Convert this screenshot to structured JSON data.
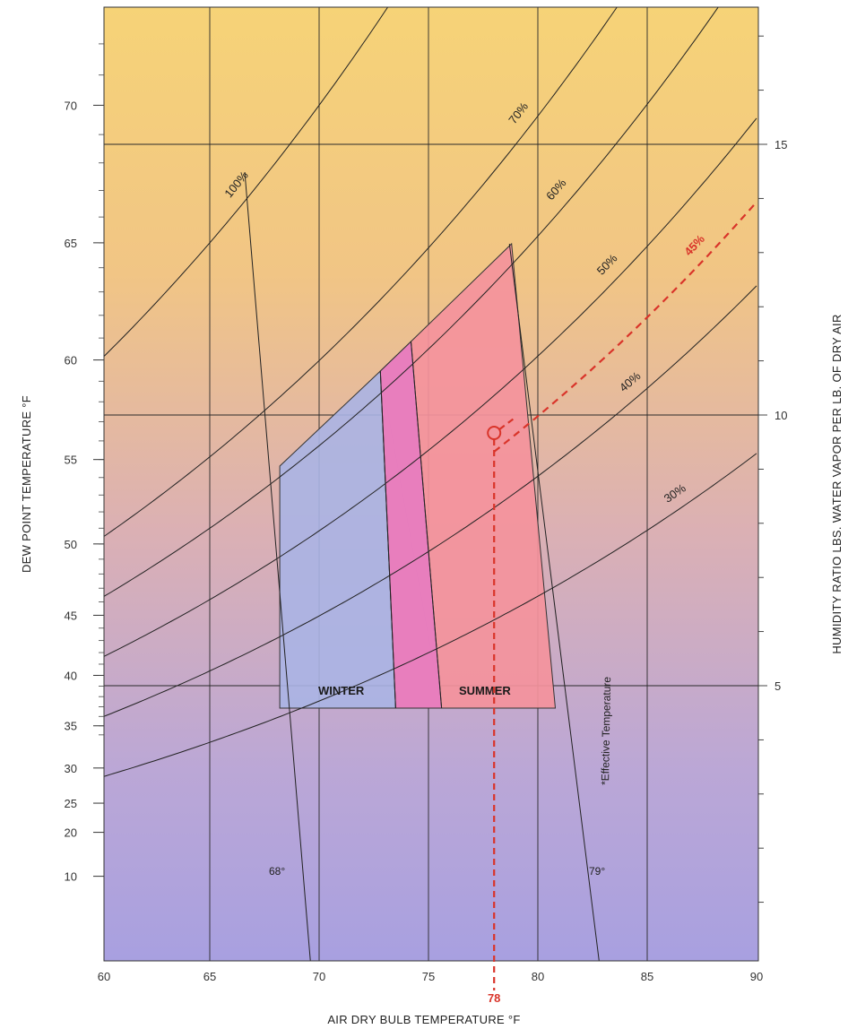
{
  "chart_data": {
    "type": "psychrometric-comfort-chart",
    "xlabel": "AIR DRY BULB TEMPERATURE °F",
    "ylabel_left": "DEW POINT TEMPERATURE °F",
    "ylabel_right": "HUMIDITY RATIO LBS. WATER VAPOR PER LB. OF DRY AIR",
    "xlim": [
      60,
      90
    ],
    "x_ticks": [
      60,
      65,
      70,
      75,
      80,
      85,
      90
    ],
    "dew_point_ticks": [
      10,
      20,
      25,
      30,
      35,
      40,
      45,
      50,
      55,
      60,
      65,
      70
    ],
    "humidity_ratio_ticks": [
      5,
      10,
      15
    ],
    "rh_curves": [
      {
        "label": "100%",
        "rh": 100
      },
      {
        "label": "70%",
        "rh": 70
      },
      {
        "label": "60%",
        "rh": 60
      },
      {
        "label": "50%",
        "rh": 50
      },
      {
        "label": "45%",
        "rh": 45,
        "highlight": true
      },
      {
        "label": "40%",
        "rh": 40
      },
      {
        "label": "30%",
        "rh": 30
      }
    ],
    "zones": [
      {
        "name": "WINTER",
        "color": "#aab4e4"
      },
      {
        "name": "SUMMER",
        "color": "#f4929c"
      }
    ],
    "overlap_color": "#e77cbf",
    "effective_temperature_label": "*Effective Temperature",
    "effective_temperature_lines": [
      {
        "label": "68°",
        "value": 68
      },
      {
        "label": "79°",
        "value": 79
      }
    ],
    "design_point": {
      "dry_bulb": 78,
      "dry_bulb_label": "78",
      "rh": 45,
      "color": "#d9342a"
    }
  }
}
